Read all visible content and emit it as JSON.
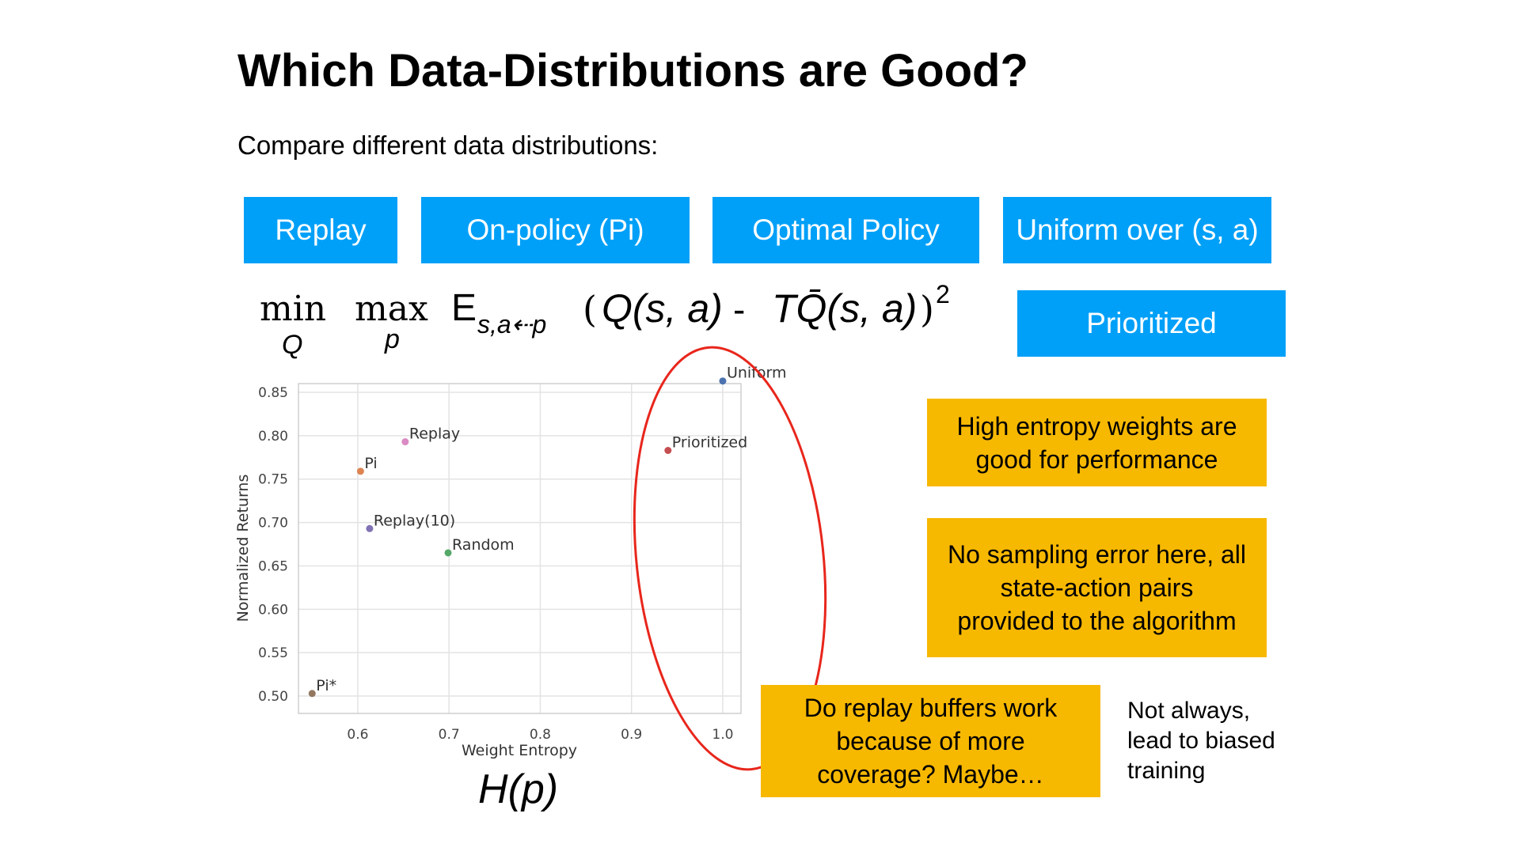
{
  "slide": {
    "title": "Which Data-Distributions are Good?",
    "subtitle": "Compare different data distributions:"
  },
  "distribution_boxes": [
    {
      "label": "Replay"
    },
    {
      "label": "On-policy (Pi)"
    },
    {
      "label": "Optimal Policy"
    },
    {
      "label": "Uniform over (s, a)"
    },
    {
      "label": "Prioritized"
    }
  ],
  "formula": {
    "min": "min",
    "min_sub": "Q",
    "max": "max",
    "max_sub": "p",
    "expect": "E",
    "expect_sub": "s,a⇠p",
    "left_paren": "(",
    "q_expr": "Q(s, a)",
    "minus": "-",
    "tq_expr": "TQ̄(s, a)",
    "right_paren": ")",
    "power": "2"
  },
  "callouts": {
    "entropy": [
      "High entropy weights are",
      "good for performance"
    ],
    "sampling": [
      "No sampling error here, all",
      "state-action pairs",
      "provided to the algorithm"
    ],
    "replay": [
      "Do replay buffers work",
      "because of more",
      "coverage? Maybe…"
    ]
  },
  "note": [
    "Not always,",
    "lead to biased",
    "training"
  ],
  "hp_label": {
    "h": "H",
    "p": "(p)"
  },
  "chart_data": {
    "type": "scatter",
    "xlabel": "Weight Entropy",
    "ylabel": "Normalized Returns",
    "xlim": [
      0.535,
      1.02
    ],
    "ylim": [
      0.48,
      0.86
    ],
    "xticks": [
      0.6,
      0.7,
      0.8,
      0.9,
      1.0
    ],
    "xtick_labels": [
      "0.6",
      "0.7",
      "0.8",
      "0.9",
      "1.0"
    ],
    "yticks": [
      0.5,
      0.55,
      0.6,
      0.65,
      0.7,
      0.75,
      0.8,
      0.85
    ],
    "ytick_labels": [
      "0.50",
      "0.55",
      "0.60",
      "0.65",
      "0.70",
      "0.75",
      "0.80",
      "0.85"
    ],
    "grid": true,
    "points": [
      {
        "label": "Uniform",
        "x": 1.0,
        "y": 0.863,
        "color": "#4c72b0"
      },
      {
        "label": "Prioritized",
        "x": 0.94,
        "y": 0.783,
        "color": "#c44e52"
      },
      {
        "label": "Replay",
        "x": 0.652,
        "y": 0.793,
        "color": "#da8bc3"
      },
      {
        "label": "Pi",
        "x": 0.603,
        "y": 0.759,
        "color": "#dd8452"
      },
      {
        "label": "Replay(10)",
        "x": 0.613,
        "y": 0.693,
        "color": "#8172b3"
      },
      {
        "label": "Random",
        "x": 0.699,
        "y": 0.665,
        "color": "#55a868"
      },
      {
        "label": "Pi*",
        "x": 0.55,
        "y": 0.503,
        "color": "#937860"
      }
    ],
    "highlight_color": "#e8261c"
  }
}
